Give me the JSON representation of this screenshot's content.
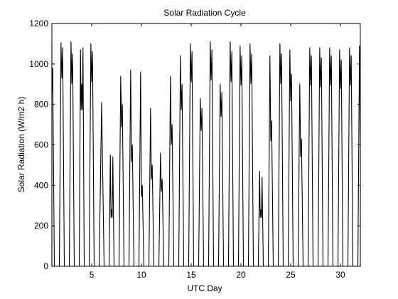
{
  "chart_data": {
    "type": "line",
    "title": "Solar Radiation Cycle",
    "xlabel": "UTC Day",
    "ylabel": "Solar Radiation (W/m2 h)",
    "xlim": [
      1,
      32
    ],
    "ylim": [
      0,
      1200
    ],
    "xticks": [
      5,
      10,
      15,
      20,
      25,
      30
    ],
    "yticks": [
      0,
      200,
      400,
      600,
      800,
      1000,
      1200
    ],
    "grid": false,
    "series": [
      {
        "color": "#000000",
        "daily_peaks": [
          {
            "day": 1,
            "values": [
              1110,
              980
            ]
          },
          {
            "day": 2,
            "values": [
              1105,
              1080
            ]
          },
          {
            "day": 3,
            "values": [
              1110,
              1050
            ]
          },
          {
            "day": 4,
            "values": [
              1070,
              900,
              1080
            ]
          },
          {
            "day": 5,
            "values": [
              1100,
              1060
            ]
          },
          {
            "day": 6,
            "values": [
              810
            ]
          },
          {
            "day": 7,
            "values": [
              550,
              280,
              540
            ]
          },
          {
            "day": 8,
            "values": [
              940,
              800
            ]
          },
          {
            "day": 9,
            "values": [
              970,
              600
            ]
          },
          {
            "day": 10,
            "values": [
              960,
              400
            ]
          },
          {
            "day": 11,
            "values": [
              780,
              500
            ]
          },
          {
            "day": 12,
            "values": [
              560,
              430
            ]
          },
          {
            "day": 13,
            "values": [
              940,
              700
            ]
          },
          {
            "day": 14,
            "values": [
              1040,
              900
            ]
          },
          {
            "day": 15,
            "values": [
              1100,
              1060
            ]
          },
          {
            "day": 16,
            "values": [
              830,
              780
            ]
          },
          {
            "day": 17,
            "values": [
              1110,
              1070
            ]
          },
          {
            "day": 18,
            "values": [
              900,
              860
            ]
          },
          {
            "day": 19,
            "values": [
              1110,
              1060
            ]
          },
          {
            "day": 20,
            "values": [
              1090,
              1040
            ]
          },
          {
            "day": 21,
            "values": [
              1100,
              1050
            ]
          },
          {
            "day": 22,
            "values": [
              470,
              280,
              440
            ]
          },
          {
            "day": 23,
            "values": [
              1040,
              720
            ]
          },
          {
            "day": 24,
            "values": [
              1100,
              1050
            ]
          },
          {
            "day": 25,
            "values": [
              1070,
              950
            ]
          },
          {
            "day": 26,
            "values": [
              900,
              630
            ]
          },
          {
            "day": 27,
            "values": [
              1080,
              1040
            ]
          },
          {
            "day": 28,
            "values": [
              1080,
              1030
            ]
          },
          {
            "day": 29,
            "values": [
              1080,
              1040
            ]
          },
          {
            "day": 30,
            "values": [
              1070,
              1020
            ]
          },
          {
            "day": 31,
            "values": [
              1080,
              1040
            ]
          },
          {
            "day": 32,
            "values": [
              1090,
              720
            ]
          }
        ]
      }
    ]
  }
}
